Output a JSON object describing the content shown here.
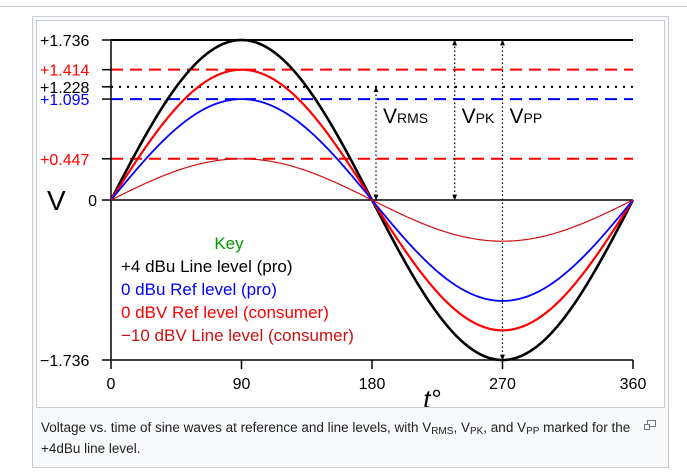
{
  "colors": {
    "pro_line": "#000000",
    "pro_ref": "#0000ff",
    "consumer_ref": "#ff0000",
    "consumer_line": "#cc1111",
    "key_title": "#009900",
    "rms_dotted": "#000000"
  },
  "icons": {
    "enlarge": "magnify-clip-icon"
  },
  "caption": {
    "pre": "Voltage vs. time of sine waves at reference and line levels, with V",
    "sub_rms": "RMS",
    "sep1": ", V",
    "sub_pk": "PK",
    "sep2": ", and V",
    "sub_pp": "PP",
    "post": " marked for the +4dBu line level."
  },
  "chart_data": {
    "type": "line",
    "xlabel": "t°",
    "ylabel": "V",
    "xlim": [
      0,
      360
    ],
    "ylim": [
      -1.736,
      1.736
    ],
    "x_ticks": [
      "0",
      "90",
      "180",
      "270",
      "360"
    ],
    "y_ticks": [
      {
        "value": 1.736,
        "label": "+1.736",
        "color": "#000000"
      },
      {
        "value": 1.414,
        "label": "+1.414",
        "color": "#ff0000"
      },
      {
        "value": 1.228,
        "label": "+1.228",
        "color": "#000000"
      },
      {
        "value": 1.095,
        "label": "+1.095",
        "color": "#0000ff"
      },
      {
        "value": 0.447,
        "label": "+0.447",
        "color": "#ff0000"
      },
      {
        "value": 0,
        "label": "0",
        "color": "#000000"
      },
      {
        "value": -1.736,
        "label": "−1.736",
        "color": "#000000"
      }
    ],
    "reference_lines": [
      {
        "value": 1.736,
        "style": "solid",
        "color": "#000000"
      },
      {
        "value": 1.414,
        "style": "dashed",
        "color": "#ff0000"
      },
      {
        "value": 1.228,
        "style": "dotted",
        "color": "#000000"
      },
      {
        "value": 1.095,
        "style": "dashed",
        "color": "#0000ff"
      },
      {
        "value": 0.447,
        "style": "dashed",
        "color": "#ff0000"
      }
    ],
    "series": [
      {
        "name": "+4 dBu Line level (pro)",
        "amplitude": 1.736,
        "color": "#000000",
        "width": 2.6
      },
      {
        "name": "0 dBu Ref level (pro)",
        "amplitude": 1.095,
        "color": "#0000ff",
        "width": 1.8
      },
      {
        "name": "0 dBV Ref level (consumer)",
        "amplitude": 1.414,
        "color": "#ff0000",
        "width": 2.2
      },
      {
        "name": "−10 dBV Line level (consumer)",
        "amplitude": 0.447,
        "color": "#cc1111",
        "width": 1.2
      }
    ],
    "legend": {
      "title": "Key",
      "placement": "lower-left",
      "items": [
        {
          "label": "+4 dBu Line level (pro)",
          "color": "#000000"
        },
        {
          "label": "0 dBu Ref level (pro)",
          "color": "#0000ff"
        },
        {
          "label": "0 dBV Ref level (consumer)",
          "color": "#ff0000"
        },
        {
          "label": "−10 dBV Line level (consumer)",
          "color": "#cc1111"
        }
      ]
    },
    "annotations": [
      {
        "main": "V",
        "sub": "RMS",
        "from": 0,
        "to": 1.228
      },
      {
        "main": "V",
        "sub": "PK",
        "from": 0,
        "to": 1.736
      },
      {
        "main": "V",
        "sub": "PP",
        "from": -1.736,
        "to": 1.736
      }
    ]
  }
}
